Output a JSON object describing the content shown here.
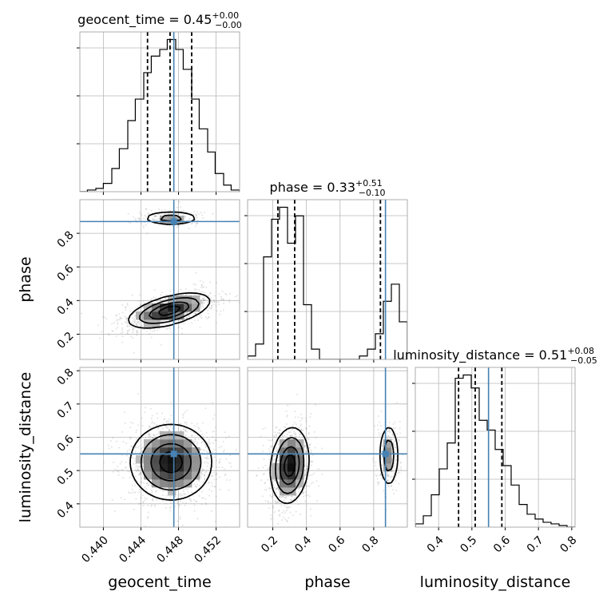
{
  "chart_data": {
    "type": "corner",
    "parameters": [
      {
        "name": "geocent_time",
        "axis_label": "geocent_time",
        "range": [
          0.4375,
          0.4545
        ],
        "ticks": [
          0.44,
          0.444,
          0.448,
          0.452
        ],
        "tick_labels": [
          "0.440",
          "0.444",
          "0.448",
          "0.452"
        ],
        "truth": 0.4475,
        "quantiles": [
          0.4447,
          0.4471,
          0.4494
        ],
        "title": {
          "text": "geocent_time = 0.45",
          "sup": "+0.00",
          "sub": "−0.00"
        },
        "hist_edges": [
          0.4375,
          0.4383,
          0.4392,
          0.44,
          0.4409,
          0.4417,
          0.4426,
          0.4434,
          0.4443,
          0.4451,
          0.446,
          0.4468,
          0.4477,
          0.4485,
          0.4494,
          0.4502,
          0.4511,
          0.4519,
          0.4528,
          0.4536,
          0.4545
        ],
        "hist_counts": [
          0,
          1,
          2,
          5,
          14,
          26,
          43,
          56,
          72,
          82,
          86,
          92,
          86,
          74,
          56,
          38,
          24,
          11,
          4,
          1
        ]
      },
      {
        "name": "phase",
        "axis_label": "phase",
        "range": [
          0.05,
          1.0
        ],
        "ticks": [
          0.2,
          0.4,
          0.6,
          0.8
        ],
        "tick_labels": [
          "0.2",
          "0.4",
          "0.6",
          "0.8"
        ],
        "truth": 0.87,
        "quantiles": [
          0.23,
          0.33,
          0.84
        ],
        "title": {
          "text": "phase = 0.33",
          "sup": "+0.51",
          "sub": "−0.10"
        },
        "hist_edges": [
          0.05,
          0.0975,
          0.145,
          0.1925,
          0.24,
          0.2875,
          0.335,
          0.3825,
          0.43,
          0.4775,
          0.525,
          0.5725,
          0.62,
          0.6675,
          0.715,
          0.7625,
          0.81,
          0.8575,
          0.905,
          0.9525,
          1.0
        ],
        "hist_counts": [
          2,
          9,
          60,
          82,
          89,
          68,
          84,
          32,
          6,
          0,
          0,
          0,
          0,
          0,
          2,
          6,
          15,
          34,
          44,
          22
        ]
      },
      {
        "name": "luminosity_distance",
        "axis_label": "luminosity_distance",
        "range": [
          0.33,
          0.81
        ],
        "ticks": [
          0.4,
          0.5,
          0.6,
          0.7,
          0.8
        ],
        "tick_labels": [
          "0.4",
          "0.5",
          "0.6",
          "0.7",
          "0.8"
        ],
        "truth": 0.55,
        "quantiles": [
          0.46,
          0.51,
          0.59
        ],
        "title": {
          "text": "luminosity_distance = 0.51",
          "sup": "+0.08",
          "sub": "−0.05"
        },
        "hist_edges": [
          0.33,
          0.354,
          0.378,
          0.402,
          0.426,
          0.45,
          0.474,
          0.498,
          0.522,
          0.546,
          0.57,
          0.594,
          0.618,
          0.642,
          0.666,
          0.69,
          0.714,
          0.738,
          0.762,
          0.786,
          0.81
        ],
        "hist_counts": [
          2,
          7,
          20,
          36,
          52,
          92,
          94,
          86,
          66,
          60,
          48,
          38,
          26,
          14,
          8,
          5,
          3,
          2,
          1,
          0
        ]
      }
    ],
    "density": {
      "phase_vs_geocent_time": {
        "modes": [
          {
            "mean": [
              0.447,
              0.34
            ],
            "sd": [
              0.0021,
              0.05
            ],
            "rho": 0.55,
            "weight": 0.85
          },
          {
            "mean": [
              0.4472,
              0.89
            ],
            "sd": [
              0.0016,
              0.022
            ],
            "rho": 0.0,
            "weight": 0.15
          }
        ]
      },
      "luminosity_distance_vs_geocent_time": {
        "modes": [
          {
            "mean": [
              0.4472,
              0.525
            ],
            "sd": [
              0.0021,
              0.055
            ],
            "rho": 0.0,
            "weight": 1.0
          }
        ]
      },
      "luminosity_distance_vs_phase": {
        "modes": [
          {
            "mean": [
              0.3,
              0.515
            ],
            "sd": [
              0.055,
              0.055
            ],
            "rho": 0.15,
            "weight": 0.8
          },
          {
            "mean": [
              0.89,
              0.545
            ],
            "sd": [
              0.03,
              0.05
            ],
            "rho": 0.0,
            "weight": 0.2
          }
        ]
      }
    },
    "grid": true,
    "colors": {
      "truth": "#4682b4",
      "hist": "#000000",
      "contour": "#000000",
      "points": "#808080"
    }
  }
}
